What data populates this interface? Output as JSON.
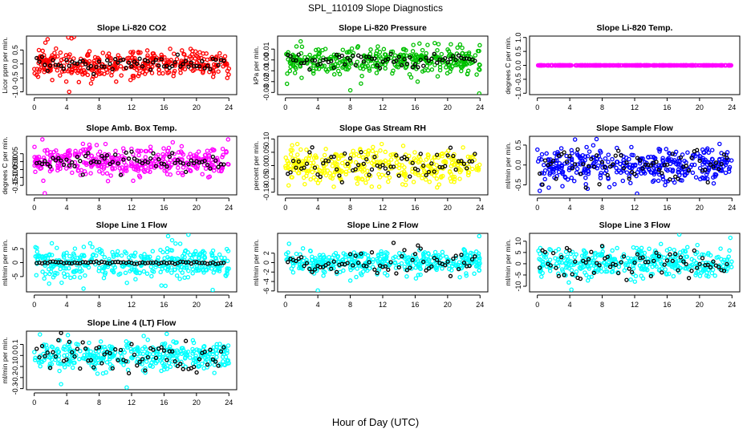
{
  "figure": {
    "title": "SPL_110109  Slope Diagnostics",
    "xlabel": "Hour of Day (UTC)"
  },
  "chart_data": [
    {
      "type": "scatter",
      "title": "Slope Li-820 CO2",
      "ylabel": "Licor ppm per min.",
      "color": "#ff0000",
      "xlim": [
        0,
        24
      ],
      "ylim": [
        -1.1,
        1.0
      ],
      "xticks": [
        "0",
        "4",
        "8",
        "12",
        "16",
        "20",
        "24"
      ],
      "yticks": [
        {
          "v": -1.0,
          "label": "-1.0"
        },
        {
          "v": -0.5,
          "label": "-0.5"
        },
        {
          "v": 0.0,
          "label": "0.0"
        },
        {
          "v": 0.5,
          "label": "0.5"
        }
      ],
      "spread": 0.25,
      "black_spread": 0.12,
      "seed": 11,
      "outliers": [
        {
          "x": 4.2,
          "y": 0.95
        },
        {
          "x": 4.6,
          "y": 0.92
        },
        {
          "x": 4.9,
          "y": 0.97
        },
        {
          "x": 5.5,
          "y": -0.65
        },
        {
          "x": 7.0,
          "y": -0.7
        },
        {
          "x": 4.3,
          "y": -1.0
        }
      ]
    },
    {
      "type": "scatter",
      "title": "Slope Li-820 Pressure",
      "ylabel": "kPa per min.",
      "color": "#00c000",
      "xlim": [
        0,
        24
      ],
      "ylim": [
        -0.032,
        0.022
      ],
      "xticks": [
        "0",
        "4",
        "8",
        "12",
        "16",
        "20",
        "24"
      ],
      "yticks": [
        {
          "v": -0.03,
          "label": "-0.03"
        },
        {
          "v": -0.02,
          "label": "-0.02"
        },
        {
          "v": -0.01,
          "label": "-0.01"
        },
        {
          "v": 0.0,
          "label": "0.00"
        },
        {
          "v": 0.01,
          "label": "0.01"
        }
      ],
      "spread": 0.006,
      "black_spread": 0.003,
      "seed": 23,
      "outliers": [
        {
          "x": 8.0,
          "y": -0.028
        },
        {
          "x": 0.2,
          "y": -0.022
        },
        {
          "x": 23.9,
          "y": -0.031
        },
        {
          "x": 16.3,
          "y": -0.02
        }
      ]
    },
    {
      "type": "scatter",
      "title": "Slope Li-820 Temp.",
      "ylabel": "degrees C per min.",
      "color": "#ff00ff",
      "xlim": [
        0,
        24
      ],
      "ylim": [
        -1.05,
        1.05
      ],
      "xticks": [
        "0",
        "4",
        "8",
        "12",
        "16",
        "20",
        "24"
      ],
      "yticks": [
        {
          "v": -1.0,
          "label": "-1.0"
        },
        {
          "v": -0.5,
          "label": "-0.5"
        },
        {
          "v": 0.0,
          "label": "0.0"
        },
        {
          "v": 0.5,
          "label": "0.5"
        },
        {
          "v": 1.0,
          "label": "1.0"
        }
      ],
      "spread": 0.0,
      "black_spread": 0.0,
      "seed": 31,
      "outliers": []
    },
    {
      "type": "scatter",
      "title": "Slope Amb. Box Temp.",
      "ylabel": "degrees C per min.",
      "color": "#ff00ff",
      "xlim": [
        0,
        24
      ],
      "ylim": [
        -0.21,
        0.16
      ],
      "xticks": [
        "0",
        "4",
        "8",
        "12",
        "16",
        "20",
        "24"
      ],
      "yticks": [
        {
          "v": -0.15,
          "label": "-0.15"
        },
        {
          "v": -0.1,
          "label": "-0.10"
        },
        {
          "v": -0.05,
          "label": "-0.05"
        },
        {
          "v": 0.0,
          "label": "0.00"
        },
        {
          "v": 0.05,
          "label": "0.05"
        }
      ],
      "spread": 0.045,
      "black_spread": 0.03,
      "seed": 47,
      "outliers": [
        {
          "x": 1.3,
          "y": -0.2
        },
        {
          "x": 1.0,
          "y": 0.14
        },
        {
          "x": 23.9,
          "y": 0.14
        }
      ]
    },
    {
      "type": "scatter",
      "title": "Slope Gas Stream RH",
      "ylabel": "percent per min.",
      "color": "#ffff00",
      "xlim": [
        0,
        24
      ],
      "ylim": [
        -0.11,
        0.11
      ],
      "xticks": [
        "0",
        "4",
        "8",
        "12",
        "16",
        "20",
        "24"
      ],
      "yticks": [
        {
          "v": -0.1,
          "label": "-0.10"
        },
        {
          "v": -0.05,
          "label": "-0.05"
        },
        {
          "v": 0.0,
          "label": "0.00"
        },
        {
          "v": 0.05,
          "label": "0.05"
        },
        {
          "v": 0.1,
          "label": "0.10"
        }
      ],
      "spread": 0.032,
      "black_spread": 0.03,
      "seed": 59,
      "outliers": []
    },
    {
      "type": "scatter",
      "title": "Slope Sample Flow",
      "ylabel": "ml/min per min.",
      "color": "#0000ff",
      "xlim": [
        0,
        24
      ],
      "ylim": [
        -0.75,
        0.72
      ],
      "xticks": [
        "0",
        "4",
        "8",
        "12",
        "16",
        "20",
        "24"
      ],
      "yticks": [
        {
          "v": -0.5,
          "label": "-0.5"
        },
        {
          "v": 0.0,
          "label": "0.0"
        },
        {
          "v": 0.5,
          "label": "0.5"
        }
      ],
      "spread": 0.22,
      "black_spread": 0.18,
      "seed": 71,
      "outliers": [
        {
          "x": 7.3,
          "y": 0.65
        },
        {
          "x": 12.3,
          "y": -0.72
        },
        {
          "x": 0.3,
          "y": -0.65
        }
      ]
    },
    {
      "type": "scatter",
      "title": "Slope Line 1 Flow",
      "ylabel": "ml/min per min.",
      "color": "#00ffff",
      "xlim": [
        0,
        24
      ],
      "ylim": [
        -10.5,
        10.5
      ],
      "xticks": [
        "0",
        "4",
        "8",
        "12",
        "16",
        "20",
        "24"
      ],
      "yticks": [
        {
          "v": -5,
          "label": "-5"
        },
        {
          "v": 0,
          "label": "0"
        },
        {
          "v": 5,
          "label": "5"
        }
      ],
      "spread": 2.8,
      "black_spread": 0.2,
      "seed": 83,
      "outliers": [
        {
          "x": 19.0,
          "y": 10.0
        },
        {
          "x": 22.0,
          "y": -9.8
        },
        {
          "x": 16.5,
          "y": 9.5
        }
      ]
    },
    {
      "type": "scatter",
      "title": "Slope Line 2 Flow",
      "ylabel": "ml/min per min.",
      "color": "#00ffff",
      "xlim": [
        0,
        24
      ],
      "ylim": [
        -6.2,
        6.2
      ],
      "xticks": [
        "0",
        "4",
        "8",
        "12",
        "16",
        "20",
        "24"
      ],
      "yticks": [
        {
          "v": -6,
          "label": "-6"
        },
        {
          "v": -4,
          "label": "-4"
        },
        {
          "v": -2,
          "label": "-2"
        },
        {
          "v": 0,
          "label": "0"
        },
        {
          "v": 2,
          "label": "2"
        }
      ],
      "spread": 1.3,
      "black_spread": 1.5,
      "seed": 97,
      "outliers": [
        {
          "x": 23.9,
          "y": 5.6
        },
        {
          "x": 4.0,
          "y": -5.9
        },
        {
          "x": 8.0,
          "y": -3.8
        }
      ]
    },
    {
      "type": "scatter",
      "title": "Slope Line 3 Flow",
      "ylabel": "ml/min per min.",
      "color": "#00ffff",
      "xlim": [
        0,
        24
      ],
      "ylim": [
        -12.5,
        13.5
      ],
      "xticks": [
        "0",
        "4",
        "8",
        "12",
        "16",
        "20",
        "24"
      ],
      "yticks": [
        {
          "v": -10,
          "label": "-10"
        },
        {
          "v": -5,
          "label": "-5"
        },
        {
          "v": 0,
          "label": "0"
        },
        {
          "v": 5,
          "label": "5"
        },
        {
          "v": 10,
          "label": "10"
        }
      ],
      "spread": 3.2,
      "black_spread": 3.5,
      "seed": 109,
      "outliers": [
        {
          "x": 23.8,
          "y": 11.5
        },
        {
          "x": 4.2,
          "y": -11.5
        },
        {
          "x": 17.5,
          "y": 13.0
        }
      ]
    },
    {
      "type": "scatter",
      "title": "Slope Line 4 (LT) Flow",
      "ylabel": "ml/min per min.",
      "color": "#00ffff",
      "xlim": [
        0,
        24
      ],
      "ylim": [
        -0.31,
        0.22
      ],
      "xticks": [
        "0",
        "4",
        "8",
        "12",
        "16",
        "20",
        "24"
      ],
      "yticks": [
        {
          "v": -0.3,
          "label": "-0.3"
        },
        {
          "v": -0.2,
          "label": "-0.2"
        },
        {
          "v": -0.1,
          "label": "-0.1"
        },
        {
          "v": 0.0,
          "label": "0.0"
        },
        {
          "v": 0.1,
          "label": "0.1"
        }
      ],
      "spread": 0.065,
      "black_spread": 0.08,
      "seed": 127,
      "outliers": [
        {
          "x": 3.3,
          "y": -0.26
        },
        {
          "x": 0.7,
          "y": 0.19
        },
        {
          "x": 11.4,
          "y": -0.29
        }
      ]
    }
  ]
}
